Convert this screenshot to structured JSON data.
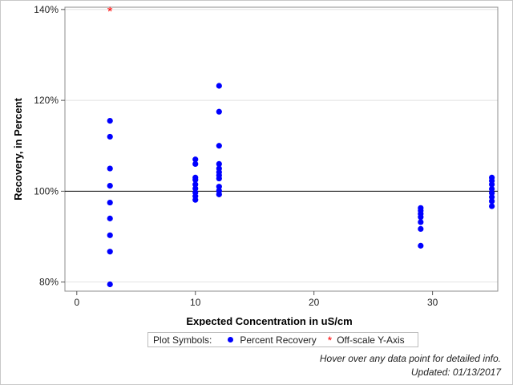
{
  "chart_data": {
    "type": "scatter",
    "xlabel": "Expected Concentration in uS/cm",
    "ylabel": "Recovery, in Percent",
    "xlim": [
      -1,
      35.5
    ],
    "ylim": [
      78,
      140.5
    ],
    "x_ticks": [
      0,
      10,
      20,
      30
    ],
    "y_ticks": [
      80,
      100,
      120,
      140
    ],
    "y_tick_labels": [
      "80%",
      "100%",
      "120%",
      "140%"
    ],
    "reference_line_y": 100,
    "grid": true,
    "legend_position": "bottom",
    "series": [
      {
        "name": "Percent Recovery",
        "marker": "circle",
        "color": "#0000ff",
        "points": [
          [
            2.8,
            115.5
          ],
          [
            2.8,
            112.0
          ],
          [
            2.8,
            105.0
          ],
          [
            2.8,
            101.2
          ],
          [
            2.8,
            97.5
          ],
          [
            2.8,
            94.0
          ],
          [
            2.8,
            90.3
          ],
          [
            2.8,
            86.7
          ],
          [
            2.8,
            79.5
          ],
          [
            10,
            107.0
          ],
          [
            10,
            106.0
          ],
          [
            10,
            103.0
          ],
          [
            10,
            102.5
          ],
          [
            10,
            101.5
          ],
          [
            10,
            100.6
          ],
          [
            10,
            99.7
          ],
          [
            10,
            98.9
          ],
          [
            10,
            98.1
          ],
          [
            12,
            123.2
          ],
          [
            12,
            117.5
          ],
          [
            12,
            110.0
          ],
          [
            12,
            106.0
          ],
          [
            12,
            105.0
          ],
          [
            12,
            104.2
          ],
          [
            12,
            103.5
          ],
          [
            12,
            102.8
          ],
          [
            12,
            101.0
          ],
          [
            12,
            100.1
          ],
          [
            12,
            99.3
          ],
          [
            29,
            96.3
          ],
          [
            29,
            95.7
          ],
          [
            29,
            95.0
          ],
          [
            29,
            94.3
          ],
          [
            29,
            93.2
          ],
          [
            29,
            91.7
          ],
          [
            29,
            88.0
          ],
          [
            35,
            103.0
          ],
          [
            35,
            102.3
          ],
          [
            35,
            101.5
          ],
          [
            35,
            100.5
          ],
          [
            35,
            99.6
          ],
          [
            35,
            98.7
          ],
          [
            35,
            97.8
          ],
          [
            35,
            96.7
          ]
        ]
      },
      {
        "name": "Off-scale Y-Axis",
        "marker": "asterisk",
        "color": "#ff0000",
        "points": [
          [
            2.8,
            140
          ]
        ]
      }
    ]
  },
  "legend": {
    "title": "Plot Symbols:",
    "items": [
      "Percent Recovery",
      "Off-scale Y-Axis"
    ]
  },
  "footer": {
    "hover_note": "Hover over any data point for detailed info.",
    "updated": "Updated: 01/13/2017"
  },
  "colors": {
    "points": "#0000ff",
    "offscale": "#ff0000",
    "reference_line": "#000000",
    "grid": "#e2e2e2"
  }
}
